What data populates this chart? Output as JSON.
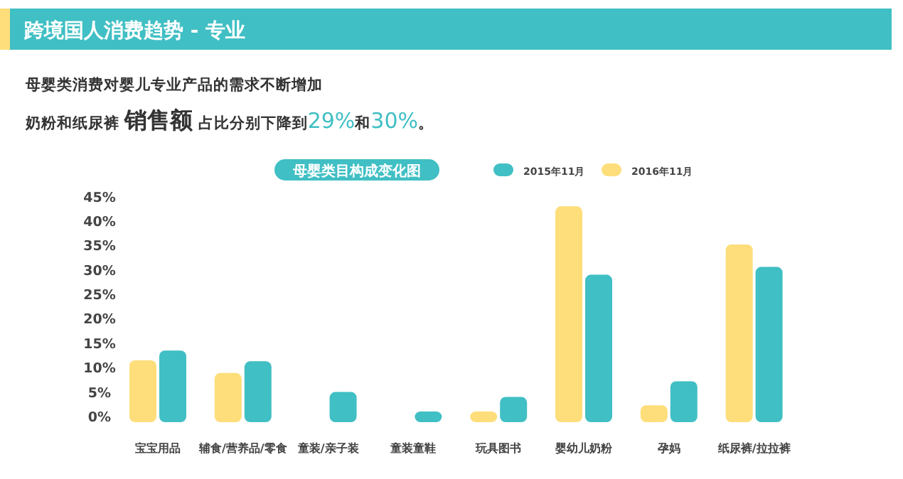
{
  "chart_data": {
    "type": "bar",
    "title": "跨境国人消费趋势 - 专业",
    "subtitle": "母婴类目构成变化图",
    "annotations": [
      "母婴类消费对婴儿专业产品的需求不断增加",
      "奶粉和纸尿裤 **销售额** 占比分别下降到29%和30%。"
    ],
    "categories": [
      "宝宝用品",
      "辅食/营养品/零食",
      "童装/亲子装",
      "童装童鞋",
      "玩具图书",
      "婴幼儿奶粉",
      "孕妈",
      "纸尿裤/拉拉裤"
    ],
    "series": [
      {
        "name": "2016年11月",
        "color": "#fede7a",
        "values": [
          11.5,
          8.9,
          null,
          null,
          1,
          43,
          2.3,
          35.2
        ]
      },
      {
        "name": "2015年11月",
        "color": "#40bfc4",
        "values": [
          13.5,
          11.3,
          5,
          1,
          4,
          29,
          7.2,
          30.6
        ]
      }
    ],
    "ylim": [
      0,
      45
    ],
    "yticks": [
      {
        "value": 0,
        "label": "0%"
      },
      {
        "value": 5,
        "label": "5%"
      },
      {
        "value": 10,
        "label": "10%"
      },
      {
        "value": 15,
        "label": "15%"
      },
      {
        "value": 20,
        "label": "20%"
      },
      {
        "value": 25,
        "label": "25%"
      },
      {
        "value": 30,
        "label": "30%"
      },
      {
        "value": 35,
        "label": "35%"
      },
      {
        "value": 40,
        "label": "40%"
      },
      {
        "value": 45,
        "label": "45%"
      }
    ],
    "grid": false,
    "legend": "top right"
  }
}
